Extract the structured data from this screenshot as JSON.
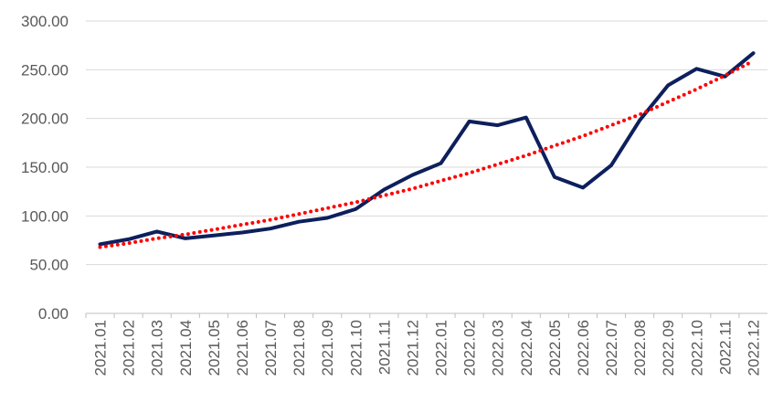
{
  "chart_data": {
    "type": "line",
    "title": "",
    "xlabel": "",
    "ylabel": "",
    "categories": [
      "2021.01",
      "2021.02",
      "2021.03",
      "2021.04",
      "2021.05",
      "2021.06",
      "2021.07",
      "2021.08",
      "2021.09",
      "2021.10",
      "2021.11",
      "2021.12",
      "2022.01",
      "2022.02",
      "2022.03",
      "2022.04",
      "2022.05",
      "2022.06",
      "2022.07",
      "2022.08",
      "2022.09",
      "2022.10",
      "2022.11",
      "2022.12"
    ],
    "ylim": [
      0,
      300
    ],
    "yticks": [
      "0.00",
      "50.00",
      "100.00",
      "150.00",
      "200.00",
      "250.00",
      "300.00"
    ],
    "grid": true,
    "series": [
      {
        "values": [
          71,
          76,
          84,
          77,
          80,
          83,
          87,
          94,
          98,
          107,
          127,
          142,
          154,
          197,
          193,
          201,
          140,
          129,
          152,
          198,
          234,
          251,
          243,
          267
        ],
        "color": "#0d1f5c",
        "style": "solid"
      },
      {
        "values": [
          68,
          72,
          77,
          81,
          86,
          91,
          96,
          102,
          108,
          114,
          121,
          128,
          136,
          144,
          153,
          162,
          172,
          182,
          193,
          204,
          217,
          230,
          244,
          259
        ],
        "color": "#ff0000",
        "style": "dotted",
        "trendline": true
      }
    ]
  }
}
